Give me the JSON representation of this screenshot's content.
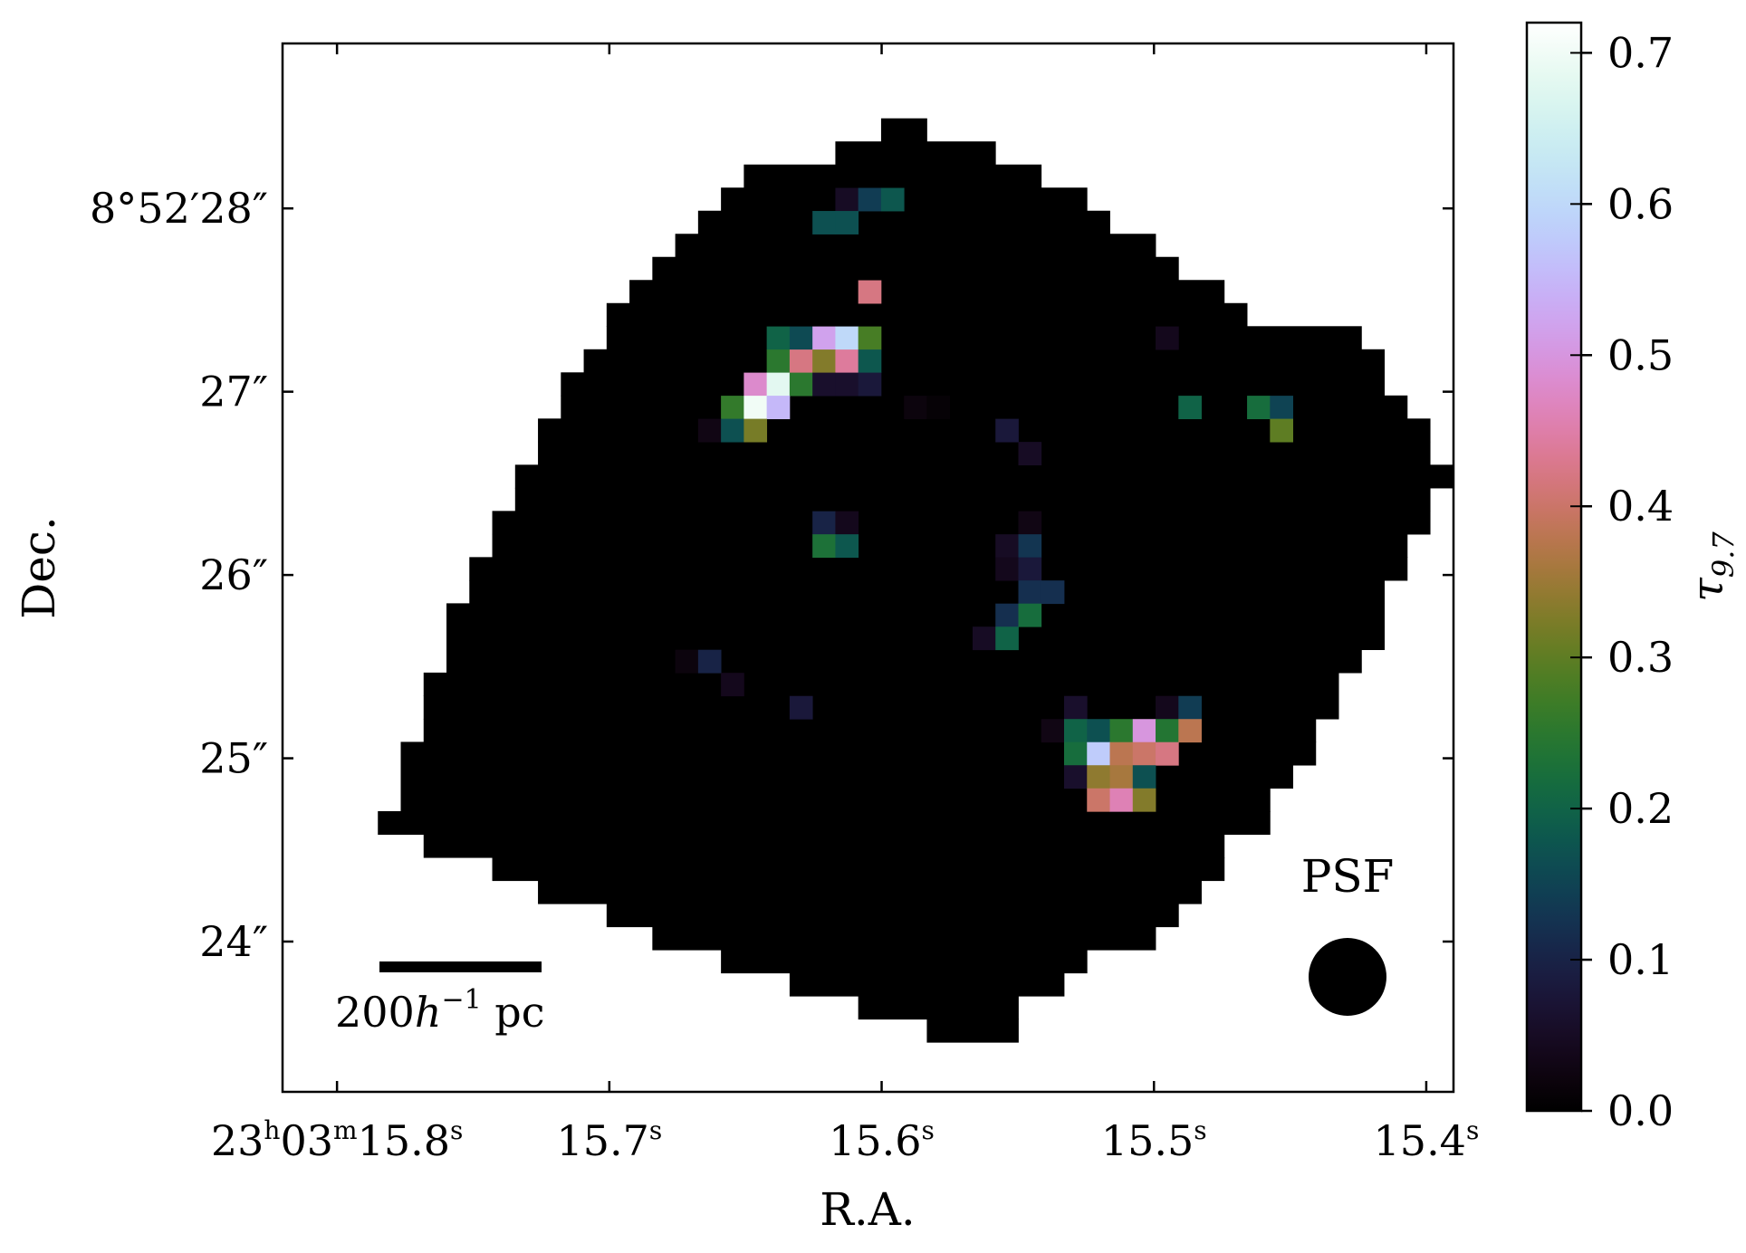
{
  "chart_data": {
    "type": "heatmap",
    "title": "",
    "xlabel": "R.A.",
    "ylabel": "Dec.",
    "x_ticks": [
      {
        "h": "23",
        "m": "03",
        "s": "15.8",
        "value": 15.8
      },
      {
        "s": "15.7",
        "value": 15.7
      },
      {
        "s": "15.6",
        "value": 15.6
      },
      {
        "s": "15.5",
        "value": 15.5
      },
      {
        "s": "15.4",
        "value": 15.4
      }
    ],
    "xlim": [
      15.82,
      15.39
    ],
    "y_ticks": [
      {
        "label": "8°52′28″",
        "value": 28
      },
      {
        "label": "27″",
        "value": 27
      },
      {
        "label": "26″",
        "value": 26
      },
      {
        "label": "25″",
        "value": 25
      },
      {
        "label": "24″",
        "value": 24
      }
    ],
    "ylim": [
      23.18,
      28.9
    ],
    "colorbar": {
      "label": "τ9.7",
      "range": [
        0.0,
        0.72
      ],
      "ticks": [
        "0.0",
        "0.1",
        "0.2",
        "0.3",
        "0.4",
        "0.5",
        "0.6",
        "0.7"
      ],
      "tick_values": [
        0,
        0.1,
        0.2,
        0.3,
        0.4,
        0.5,
        0.6,
        0.7
      ],
      "colormap": "cubehelix"
    },
    "grid": false,
    "legend": "none",
    "scalebar": {
      "text": "200h⁻¹ pc"
    },
    "psf": {
      "text": "PSF"
    },
    "pixel_size_arcsec": 0.126,
    "map_origin": {
      "ra_s": 15.785,
      "dec_arcsec": 23.45
    },
    "footprint_rows": [
      [
        24,
        27
      ],
      [
        21,
        27
      ],
      [
        18,
        29
      ],
      [
        15,
        30
      ],
      [
        12,
        33
      ],
      [
        10,
        34
      ],
      [
        7,
        35
      ],
      [
        5,
        36
      ],
      [
        2,
        36
      ],
      [
        0,
        38
      ],
      [
        1,
        38
      ],
      [
        1,
        39
      ],
      [
        1,
        40
      ],
      [
        2,
        40
      ],
      [
        2,
        41
      ],
      [
        2,
        41
      ],
      [
        3,
        42
      ],
      [
        3,
        43
      ],
      [
        3,
        43
      ],
      [
        4,
        43
      ],
      [
        4,
        44
      ],
      [
        5,
        44
      ],
      [
        5,
        45
      ],
      [
        6,
        45
      ],
      [
        6,
        46
      ],
      [
        7,
        45
      ],
      [
        7,
        45
      ],
      [
        8,
        44
      ],
      [
        8,
        43
      ],
      [
        9,
        43
      ],
      [
        10,
        42
      ],
      [
        10,
        37
      ],
      [
        11,
        36
      ],
      [
        12,
        34
      ],
      [
        13,
        33
      ],
      [
        14,
        31
      ],
      [
        15,
        30
      ],
      [
        16,
        28
      ],
      [
        20,
        26
      ],
      [
        22,
        23
      ]
    ],
    "pixels": [
      [
        20,
        36,
        0.05
      ],
      [
        21,
        36,
        0.14
      ],
      [
        22,
        36,
        0.18
      ],
      [
        19,
        35,
        0.17
      ],
      [
        20,
        35,
        0.17
      ],
      [
        21,
        32,
        0.42
      ],
      [
        17,
        30,
        0.2
      ],
      [
        18,
        30,
        0.16
      ],
      [
        19,
        30,
        0.52
      ],
      [
        20,
        30,
        0.6
      ],
      [
        21,
        30,
        0.28
      ],
      [
        17,
        29,
        0.25
      ],
      [
        18,
        29,
        0.42
      ],
      [
        19,
        29,
        0.33
      ],
      [
        20,
        29,
        0.44
      ],
      [
        21,
        29,
        0.18
      ],
      [
        16,
        28,
        0.48
      ],
      [
        17,
        28,
        0.68
      ],
      [
        18,
        28,
        0.25
      ],
      [
        19,
        28,
        0.06
      ],
      [
        20,
        28,
        0.06
      ],
      [
        21,
        28,
        0.08
      ],
      [
        15,
        27,
        0.26
      ],
      [
        16,
        27,
        0.7
      ],
      [
        17,
        27,
        0.55
      ],
      [
        23,
        27,
        0.02
      ],
      [
        24,
        27,
        0.01
      ],
      [
        14,
        26,
        0.03
      ],
      [
        15,
        26,
        0.17
      ],
      [
        16,
        26,
        0.32
      ],
      [
        27,
        26,
        0.08
      ],
      [
        28,
        25,
        0.05
      ],
      [
        19,
        22,
        0.1
      ],
      [
        20,
        22,
        0.04
      ],
      [
        28,
        22,
        0.03
      ],
      [
        19,
        21,
        0.23
      ],
      [
        20,
        21,
        0.18
      ],
      [
        27,
        21,
        0.05
      ],
      [
        28,
        21,
        0.13
      ],
      [
        27,
        20,
        0.04
      ],
      [
        28,
        20,
        0.08
      ],
      [
        28,
        19,
        0.12
      ],
      [
        29,
        19,
        0.12
      ],
      [
        27,
        18,
        0.12
      ],
      [
        28,
        18,
        0.22
      ],
      [
        26,
        17,
        0.05
      ],
      [
        27,
        17,
        0.2
      ],
      [
        13,
        16,
        0.02
      ],
      [
        14,
        16,
        0.1
      ],
      [
        15,
        15,
        0.04
      ],
      [
        18,
        14,
        0.08
      ],
      [
        30,
        14,
        0.06
      ],
      [
        34,
        14,
        0.04
      ],
      [
        35,
        14,
        0.14
      ],
      [
        29,
        13,
        0.03
      ],
      [
        30,
        13,
        0.2
      ],
      [
        31,
        13,
        0.17
      ],
      [
        32,
        13,
        0.25
      ],
      [
        33,
        13,
        0.5
      ],
      [
        34,
        13,
        0.24
      ],
      [
        35,
        13,
        0.38
      ],
      [
        30,
        12,
        0.22
      ],
      [
        31,
        12,
        0.58
      ],
      [
        32,
        12,
        0.38
      ],
      [
        33,
        12,
        0.4
      ],
      [
        34,
        12,
        0.42
      ],
      [
        30,
        11,
        0.06
      ],
      [
        31,
        11,
        0.34
      ],
      [
        32,
        11,
        0.36
      ],
      [
        33,
        11,
        0.17
      ],
      [
        31,
        10,
        0.4
      ],
      [
        32,
        10,
        0.46
      ],
      [
        33,
        10,
        0.33
      ],
      [
        34,
        30,
        0.04
      ],
      [
        35,
        27,
        0.2
      ],
      [
        38,
        27,
        0.22
      ],
      [
        39,
        27,
        0.15
      ],
      [
        39,
        26,
        0.3
      ]
    ]
  }
}
